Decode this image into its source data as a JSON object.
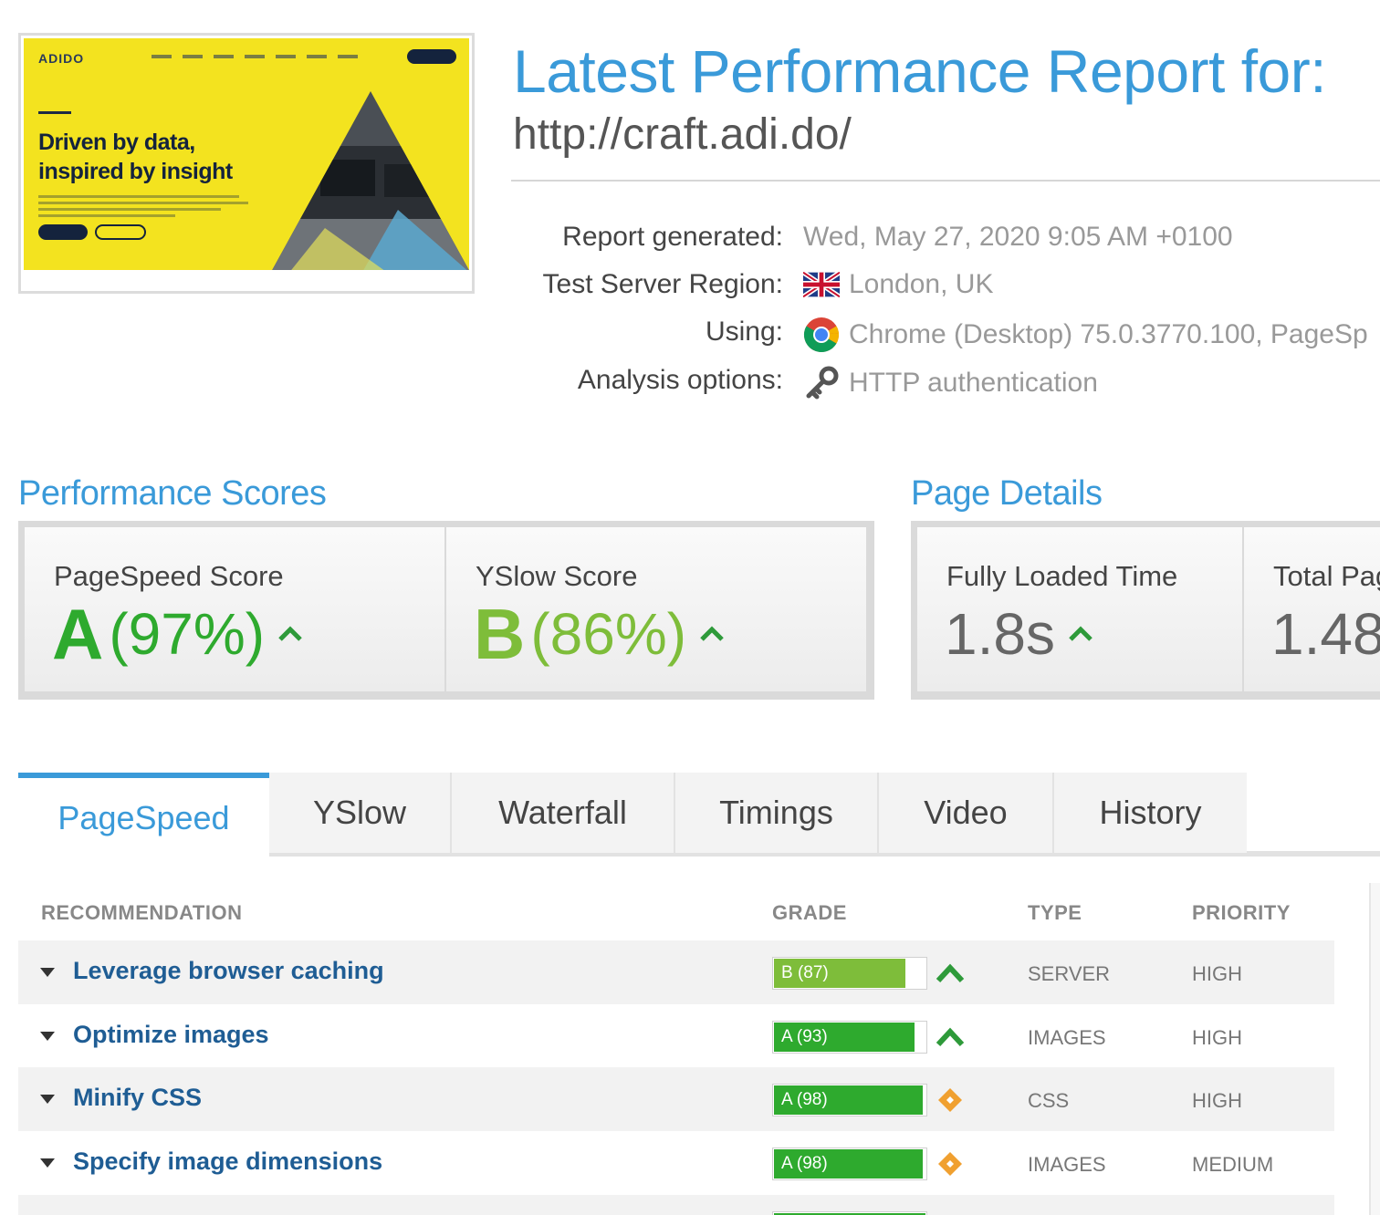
{
  "thumbnail": {
    "brand": "ADIDO",
    "headline_line1": "Driven by data,",
    "headline_line2": "inspired by insight"
  },
  "header": {
    "title": "Latest Performance Report for:",
    "url": "http://craft.adi.do/"
  },
  "meta": {
    "report_generated_label": "Report generated:",
    "report_generated_value": "Wed, May 27, 2020 9:05 AM +0100",
    "region_label": "Test Server Region:",
    "region_value": "London, UK",
    "region_icon": "uk-flag-icon",
    "using_label": "Using:",
    "using_value": "Chrome (Desktop) 75.0.3770.100, PageSp",
    "using_icon": "chrome-icon",
    "options_label": "Analysis options:",
    "options_value": "HTTP authentication",
    "options_icon": "key-icon"
  },
  "performance_scores": {
    "title": "Performance Scores",
    "pagespeed": {
      "label": "PageSpeed Score",
      "grade": "A",
      "percent": "(97%)",
      "trend": "up"
    },
    "yslow": {
      "label": "YSlow Score",
      "grade": "B",
      "percent": "(86%)",
      "trend": "up"
    }
  },
  "page_details": {
    "title": "Page Details",
    "fully_loaded": {
      "label": "Fully Loaded Time",
      "value": "1.8s",
      "trend": "up"
    },
    "total_page": {
      "label": "Total Pag",
      "value": "1.48"
    }
  },
  "tabs": [
    {
      "label": "PageSpeed",
      "active": true
    },
    {
      "label": "YSlow",
      "active": false
    },
    {
      "label": "Waterfall",
      "active": false
    },
    {
      "label": "Timings",
      "active": false
    },
    {
      "label": "Video",
      "active": false
    },
    {
      "label": "History",
      "active": false
    }
  ],
  "table": {
    "headers": {
      "recommendation": "RECOMMENDATION",
      "grade": "GRADE",
      "type": "TYPE",
      "priority": "PRIORITY"
    },
    "rows": [
      {
        "recommendation": "Leverage browser caching",
        "grade": "B (87)",
        "score": 87,
        "trend": "up",
        "type": "SERVER",
        "priority": "HIGH"
      },
      {
        "recommendation": "Optimize images",
        "grade": "A (93)",
        "score": 93,
        "trend": "up",
        "type": "IMAGES",
        "priority": "HIGH"
      },
      {
        "recommendation": "Minify CSS",
        "grade": "A (98)",
        "score": 98,
        "trend": "same",
        "type": "CSS",
        "priority": "HIGH"
      },
      {
        "recommendation": "Specify image dimensions",
        "grade": "A (98)",
        "score": 98,
        "trend": "same",
        "type": "IMAGES",
        "priority": "MEDIUM"
      }
    ]
  },
  "colors": {
    "accent_blue": "#3a9ad9",
    "link_blue": "#1f5d94",
    "grade_a": "#2eaa2e",
    "grade_b": "#7ebd3a",
    "trend_up": "#2e9a3a",
    "trend_same": "#f0a030"
  }
}
